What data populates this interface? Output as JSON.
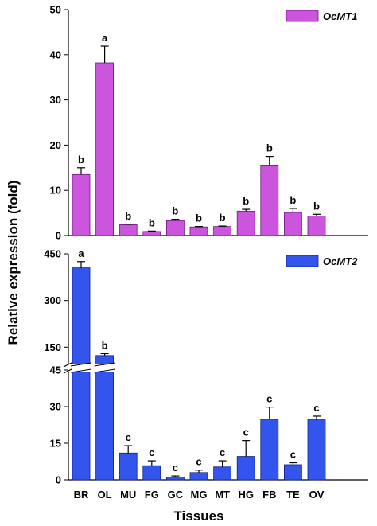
{
  "chart_data": [
    {
      "type": "bar",
      "panel": "top",
      "categories": [
        "BR",
        "OL",
        "MU",
        "FG",
        "GC",
        "MG",
        "MT",
        "HG",
        "FB",
        "TE",
        "OV"
      ],
      "series": [
        {
          "name": "OcMT1",
          "values": [
            13.5,
            38.2,
            2.4,
            0.9,
            3.3,
            1.9,
            2.0,
            5.4,
            15.6,
            5.1,
            4.3
          ],
          "errors": [
            1.5,
            3.7,
            0.1,
            0.1,
            0.3,
            0.1,
            0.1,
            0.4,
            1.9,
            0.9,
            0.4
          ],
          "letters": [
            "b",
            "a",
            "b",
            "b",
            "b",
            "b",
            "b",
            "b",
            "b",
            "b",
            "b"
          ],
          "color": "#cc55dd"
        }
      ],
      "yticks": [
        0,
        10,
        20,
        30,
        40,
        50
      ],
      "ylim": [
        0,
        50
      ],
      "legend_position": "top-right"
    },
    {
      "type": "bar",
      "panel": "bottom",
      "categories": [
        "BR",
        "OL",
        "MU",
        "FG",
        "GC",
        "MG",
        "MT",
        "HG",
        "FB",
        "TE",
        "OV"
      ],
      "series": [
        {
          "name": "OcMT2",
          "values": [
            405,
            123,
            11,
            5.8,
            1.1,
            3.0,
            5.3,
            9.6,
            24.8,
            6.2,
            24.6
          ],
          "errors": [
            20,
            6,
            3,
            2,
            0.5,
            1,
            2.5,
            6.5,
            5,
            0.8,
            1.5
          ],
          "letters": [
            "a",
            "b",
            "c",
            "c",
            "c",
            "c",
            "c",
            "c",
            "c",
            "c",
            "c"
          ],
          "color": "#3355ee"
        }
      ],
      "yticks": [
        "0",
        "15",
        "30",
        "45",
        "150",
        "300",
        "450"
      ],
      "ylim": [
        0,
        450
      ],
      "axis_break": [
        45,
        120
      ],
      "legend_position": "top-right"
    }
  ],
  "ylabel": "Relative expression (fold)",
  "xlabel": "Tissues"
}
